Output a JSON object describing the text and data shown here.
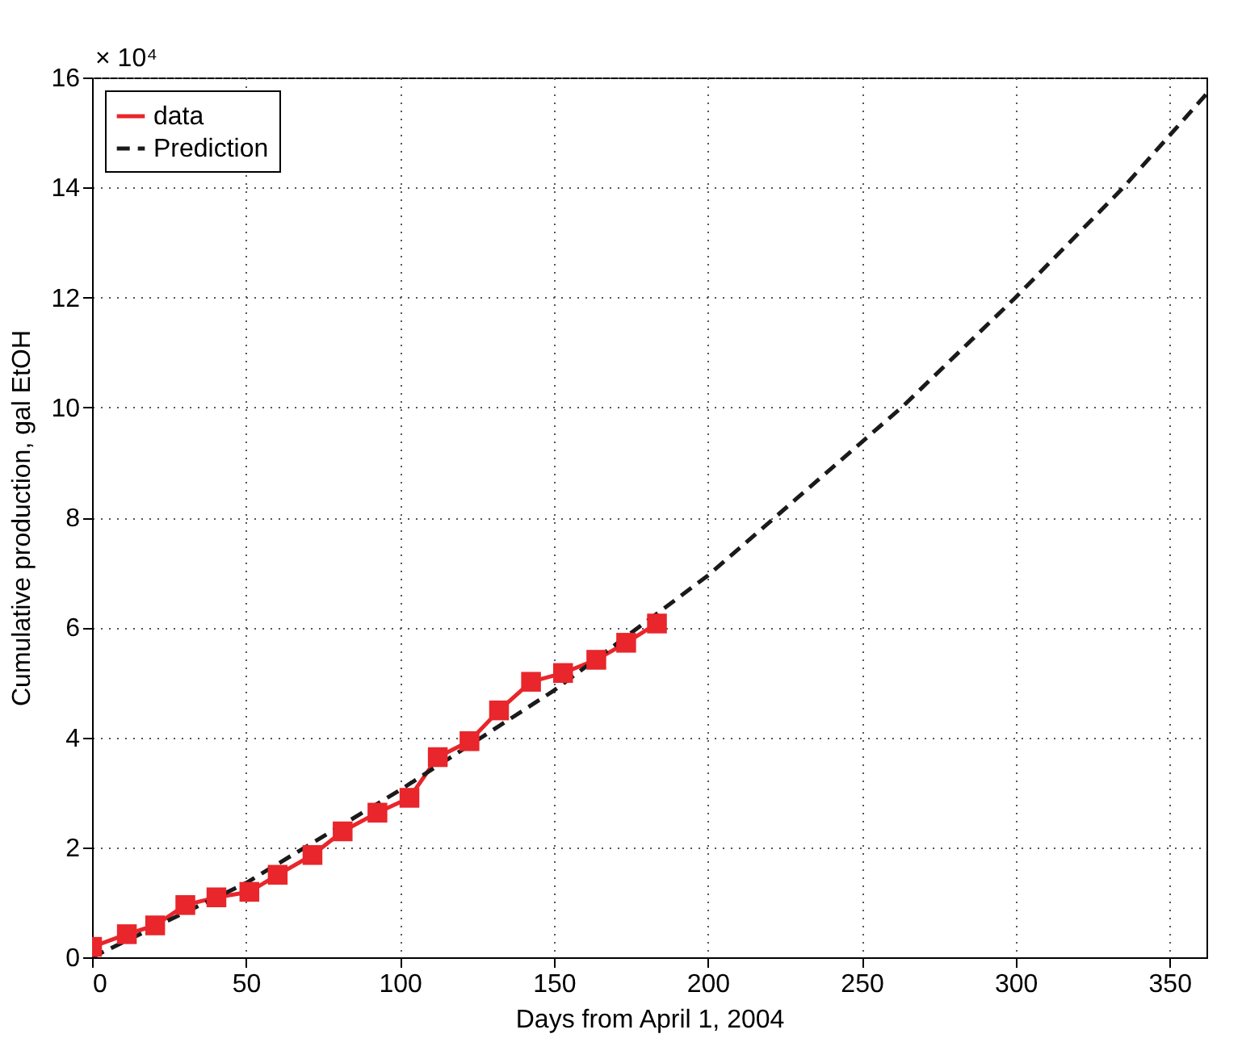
{
  "chart_data": {
    "type": "line",
    "xlabel": "Days from April 1, 2004",
    "ylabel": "Cumulative production, gal EtOH",
    "annotations": [
      "× 10⁴"
    ],
    "xlim": [
      0,
      362
    ],
    "xticks": [
      0,
      50,
      100,
      150,
      200,
      250,
      300,
      350
    ],
    "ylim": [
      0,
      16
    ],
    "yticks": [
      0,
      2,
      4,
      6,
      8,
      10,
      12,
      14,
      16
    ],
    "grid": true,
    "legend": "top left",
    "series": [
      {
        "name": "data",
        "color": "#e8262b",
        "marker": "square",
        "line_style": "solid",
        "x": [
          0,
          11.3,
          20.5,
          30.3,
          40.4,
          51.1,
          60.3,
          71.6,
          81.4,
          92.7,
          103.1,
          112.3,
          122.6,
          132.2,
          142.6,
          153,
          163.8,
          173.5,
          183.5
        ],
        "values": [
          0.19,
          0.42,
          0.58,
          0.95,
          1.09,
          1.19,
          1.5,
          1.86,
          2.29,
          2.63,
          2.9,
          3.64,
          3.93,
          4.49,
          5.01,
          5.17,
          5.41,
          5.72,
          6.07
        ]
      },
      {
        "name": "Prediction",
        "color": "#1a1a1a",
        "marker": "none",
        "line_style": "dashed",
        "x": [
          0,
          50,
          100,
          150,
          200,
          263,
          300,
          335,
          362
        ],
        "values": [
          0,
          1.35,
          3.04,
          4.85,
          6.94,
          10,
          12,
          14,
          15.7
        ]
      }
    ]
  }
}
